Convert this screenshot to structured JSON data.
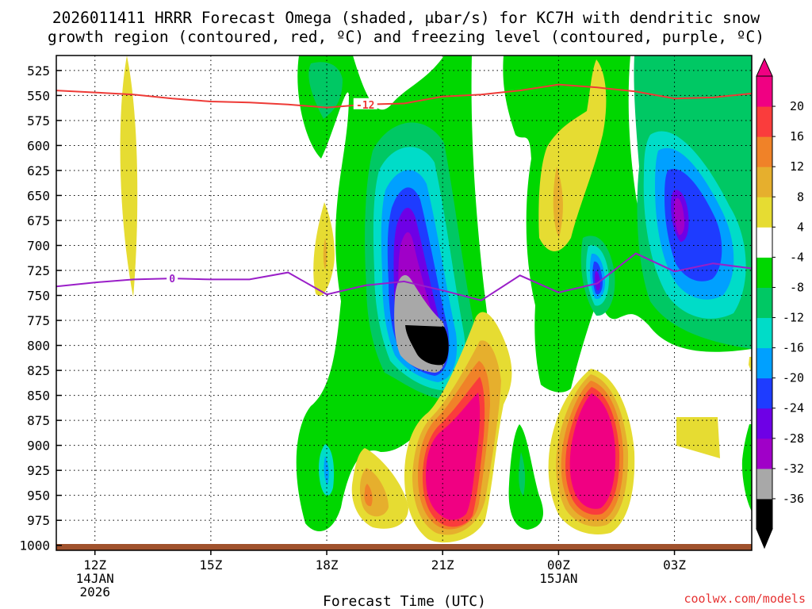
{
  "chart_data": {
    "type": "time-height contour",
    "title_line1": "2026011411 HRRR Forecast Omega (shaded, μbar/s) for KC7H with dendritic snow",
    "title_line2": "growth region (contoured, red, ºC) and freezing level (contoured, purple, ºC)",
    "xlabel": "Forecast Time (UTC)",
    "credit": "coolwx.com/models",
    "y_axis": {
      "ylim_hpa": [
        1005,
        510
      ],
      "tick_labels": [
        "525",
        "550",
        "575",
        "600",
        "625",
        "650",
        "675",
        "700",
        "725",
        "750",
        "775",
        "800",
        "825",
        "850",
        "875",
        "900",
        "925",
        "950",
        "975",
        "1000"
      ]
    },
    "x_axis": {
      "xlim_hours": [
        11,
        29
      ],
      "ticks": [
        {
          "hour": 12,
          "lines": [
            "12Z",
            "14JAN",
            "2026"
          ]
        },
        {
          "hour": 15,
          "lines": [
            "15Z"
          ]
        },
        {
          "hour": 18,
          "lines": [
            "18Z"
          ]
        },
        {
          "hour": 21,
          "lines": [
            "21Z"
          ]
        },
        {
          "hour": 24,
          "lines": [
            "00Z",
            "15JAN"
          ]
        },
        {
          "hour": 27,
          "lines": [
            "03Z"
          ]
        }
      ]
    },
    "colorbar": {
      "tick_labels": [
        "20",
        "16",
        "12",
        "8",
        "4",
        "-4",
        "-8",
        "-12",
        "-16",
        "-20",
        "-24",
        "-28",
        "-32",
        "-36"
      ],
      "colors": [
        "#000000",
        "#a8a8a8",
        "#a000c8",
        "#6e00e6",
        "#1e3cff",
        "#00a0ff",
        "#00dcc8",
        "#00c864",
        "#00d700",
        "#ffffff",
        "#e6dc32",
        "#e6af2d",
        "#f08228",
        "#fa3c3c",
        "#f00082"
      ]
    },
    "dgz_contour": {
      "label": "-12",
      "points": [
        [
          11,
          545
        ],
        [
          12,
          547
        ],
        [
          13,
          549
        ],
        [
          14,
          553
        ],
        [
          15,
          556
        ],
        [
          16,
          557
        ],
        [
          17,
          559
        ],
        [
          18,
          562
        ],
        [
          19,
          559
        ],
        [
          20,
          558
        ],
        [
          21,
          551
        ],
        [
          22,
          549
        ],
        [
          23,
          545
        ],
        [
          24,
          539
        ],
        [
          25,
          542
        ],
        [
          26,
          546
        ],
        [
          27,
          553
        ],
        [
          28,
          552
        ],
        [
          29,
          548
        ]
      ]
    },
    "freezing_contour": {
      "label": "0",
      "points": [
        [
          11,
          741
        ],
        [
          12,
          737
        ],
        [
          13,
          734
        ],
        [
          14,
          733
        ],
        [
          15,
          734
        ],
        [
          16,
          734
        ],
        [
          17,
          727
        ],
        [
          18,
          749
        ],
        [
          19,
          740
        ],
        [
          20,
          736
        ],
        [
          21,
          745
        ],
        [
          22,
          755
        ],
        [
          23,
          730
        ],
        [
          24,
          747
        ],
        [
          25,
          738
        ],
        [
          26,
          708
        ],
        [
          27,
          726
        ],
        [
          28,
          718
        ],
        [
          29,
          723
        ]
      ]
    }
  }
}
